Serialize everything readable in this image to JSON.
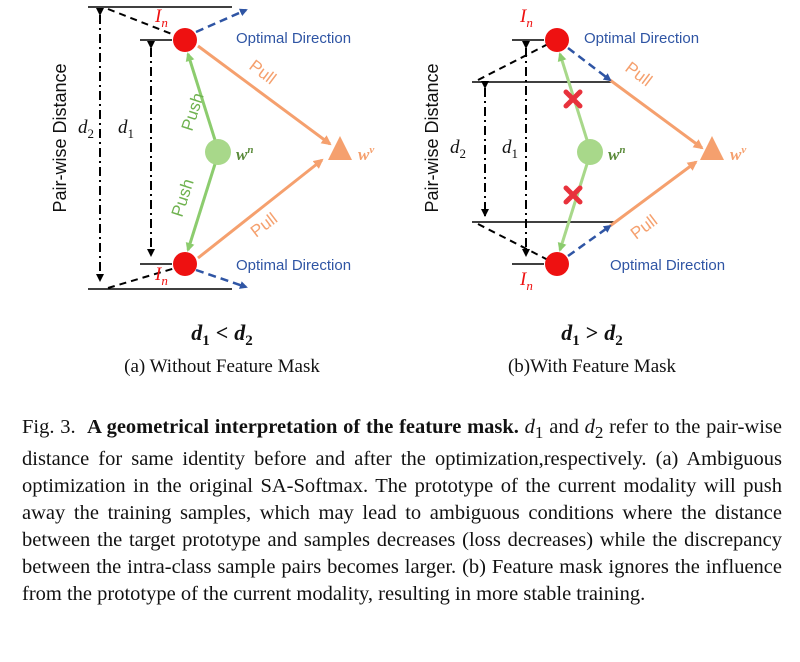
{
  "panel_a": {
    "sample_top_label": "I",
    "sample_top_sub": "n",
    "sample_bottom_label": "I",
    "sample_bottom_sub": "n",
    "optimal_top": "Optimal Direction",
    "optimal_bottom": "Optimal Direction",
    "push_top": "Push",
    "push_bottom": "Push",
    "pull_top": "Pull",
    "pull_bottom": "Pull",
    "proto_current": "w",
    "proto_current_sup": "n",
    "proto_target": "w",
    "proto_target_sup": "v",
    "axis_label": "Pair-wise Distance",
    "d2_label": "d",
    "d2_sub": "2",
    "d1_label": "d",
    "d1_sub": "1",
    "relation_left": "d",
    "relation_left_sub": "1",
    "relation_op": "<",
    "relation_right": "d",
    "relation_right_sub": "2",
    "subcaption": "(a) Without Feature Mask"
  },
  "panel_b": {
    "sample_top_label": "I",
    "sample_top_sub": "n",
    "sample_bottom_label": "I",
    "sample_bottom_sub": "n",
    "optimal_top": "Optimal Direction",
    "optimal_bottom": "Optimal Direction",
    "pull_top": "Pull",
    "pull_bottom": "Pull",
    "proto_current": "w",
    "proto_current_sup": "n",
    "proto_target": "w",
    "proto_target_sup": "v",
    "axis_label": "Pair-wise Distance",
    "d2_label": "d",
    "d2_sub": "2",
    "d1_label": "d",
    "d1_sub": "1",
    "relation_left": "d",
    "relation_left_sub": "1",
    "relation_op": ">",
    "relation_right": "d",
    "relation_right_sub": "2",
    "subcaption": "(b)With Feature Mask"
  },
  "colors": {
    "sample": "#ee1111",
    "optimal": "#2f55a4",
    "push": "#8ccc6e",
    "pull": "#f5a06e",
    "proto_current": "#a8d88a",
    "proto_current_text": "#5a8a3a",
    "proto_target": "#f5a06e",
    "cross": "#e8323c"
  },
  "caption": {
    "fig": "Fig. 3.",
    "title": "A geometrical interpretation of the feature mask.",
    "s1": "d",
    "s1_sub": "1",
    "s2": "and",
    "s3": "d",
    "s3_sub": "2",
    "body": "refer to the pair-wise distance for same identity before and after the optimization,respectively. (a) Ambiguous optimization in the original SA-Softmax. The prototype of the current modality will push away the training samples, which may lead to ambiguous conditions where the distance between the target prototype and samples decreases (loss decreases) while the discrepancy between the intra-class sample pairs becomes larger. (b) Feature mask ignores the influence from the prototype of the current modality, resulting in more stable training."
  }
}
